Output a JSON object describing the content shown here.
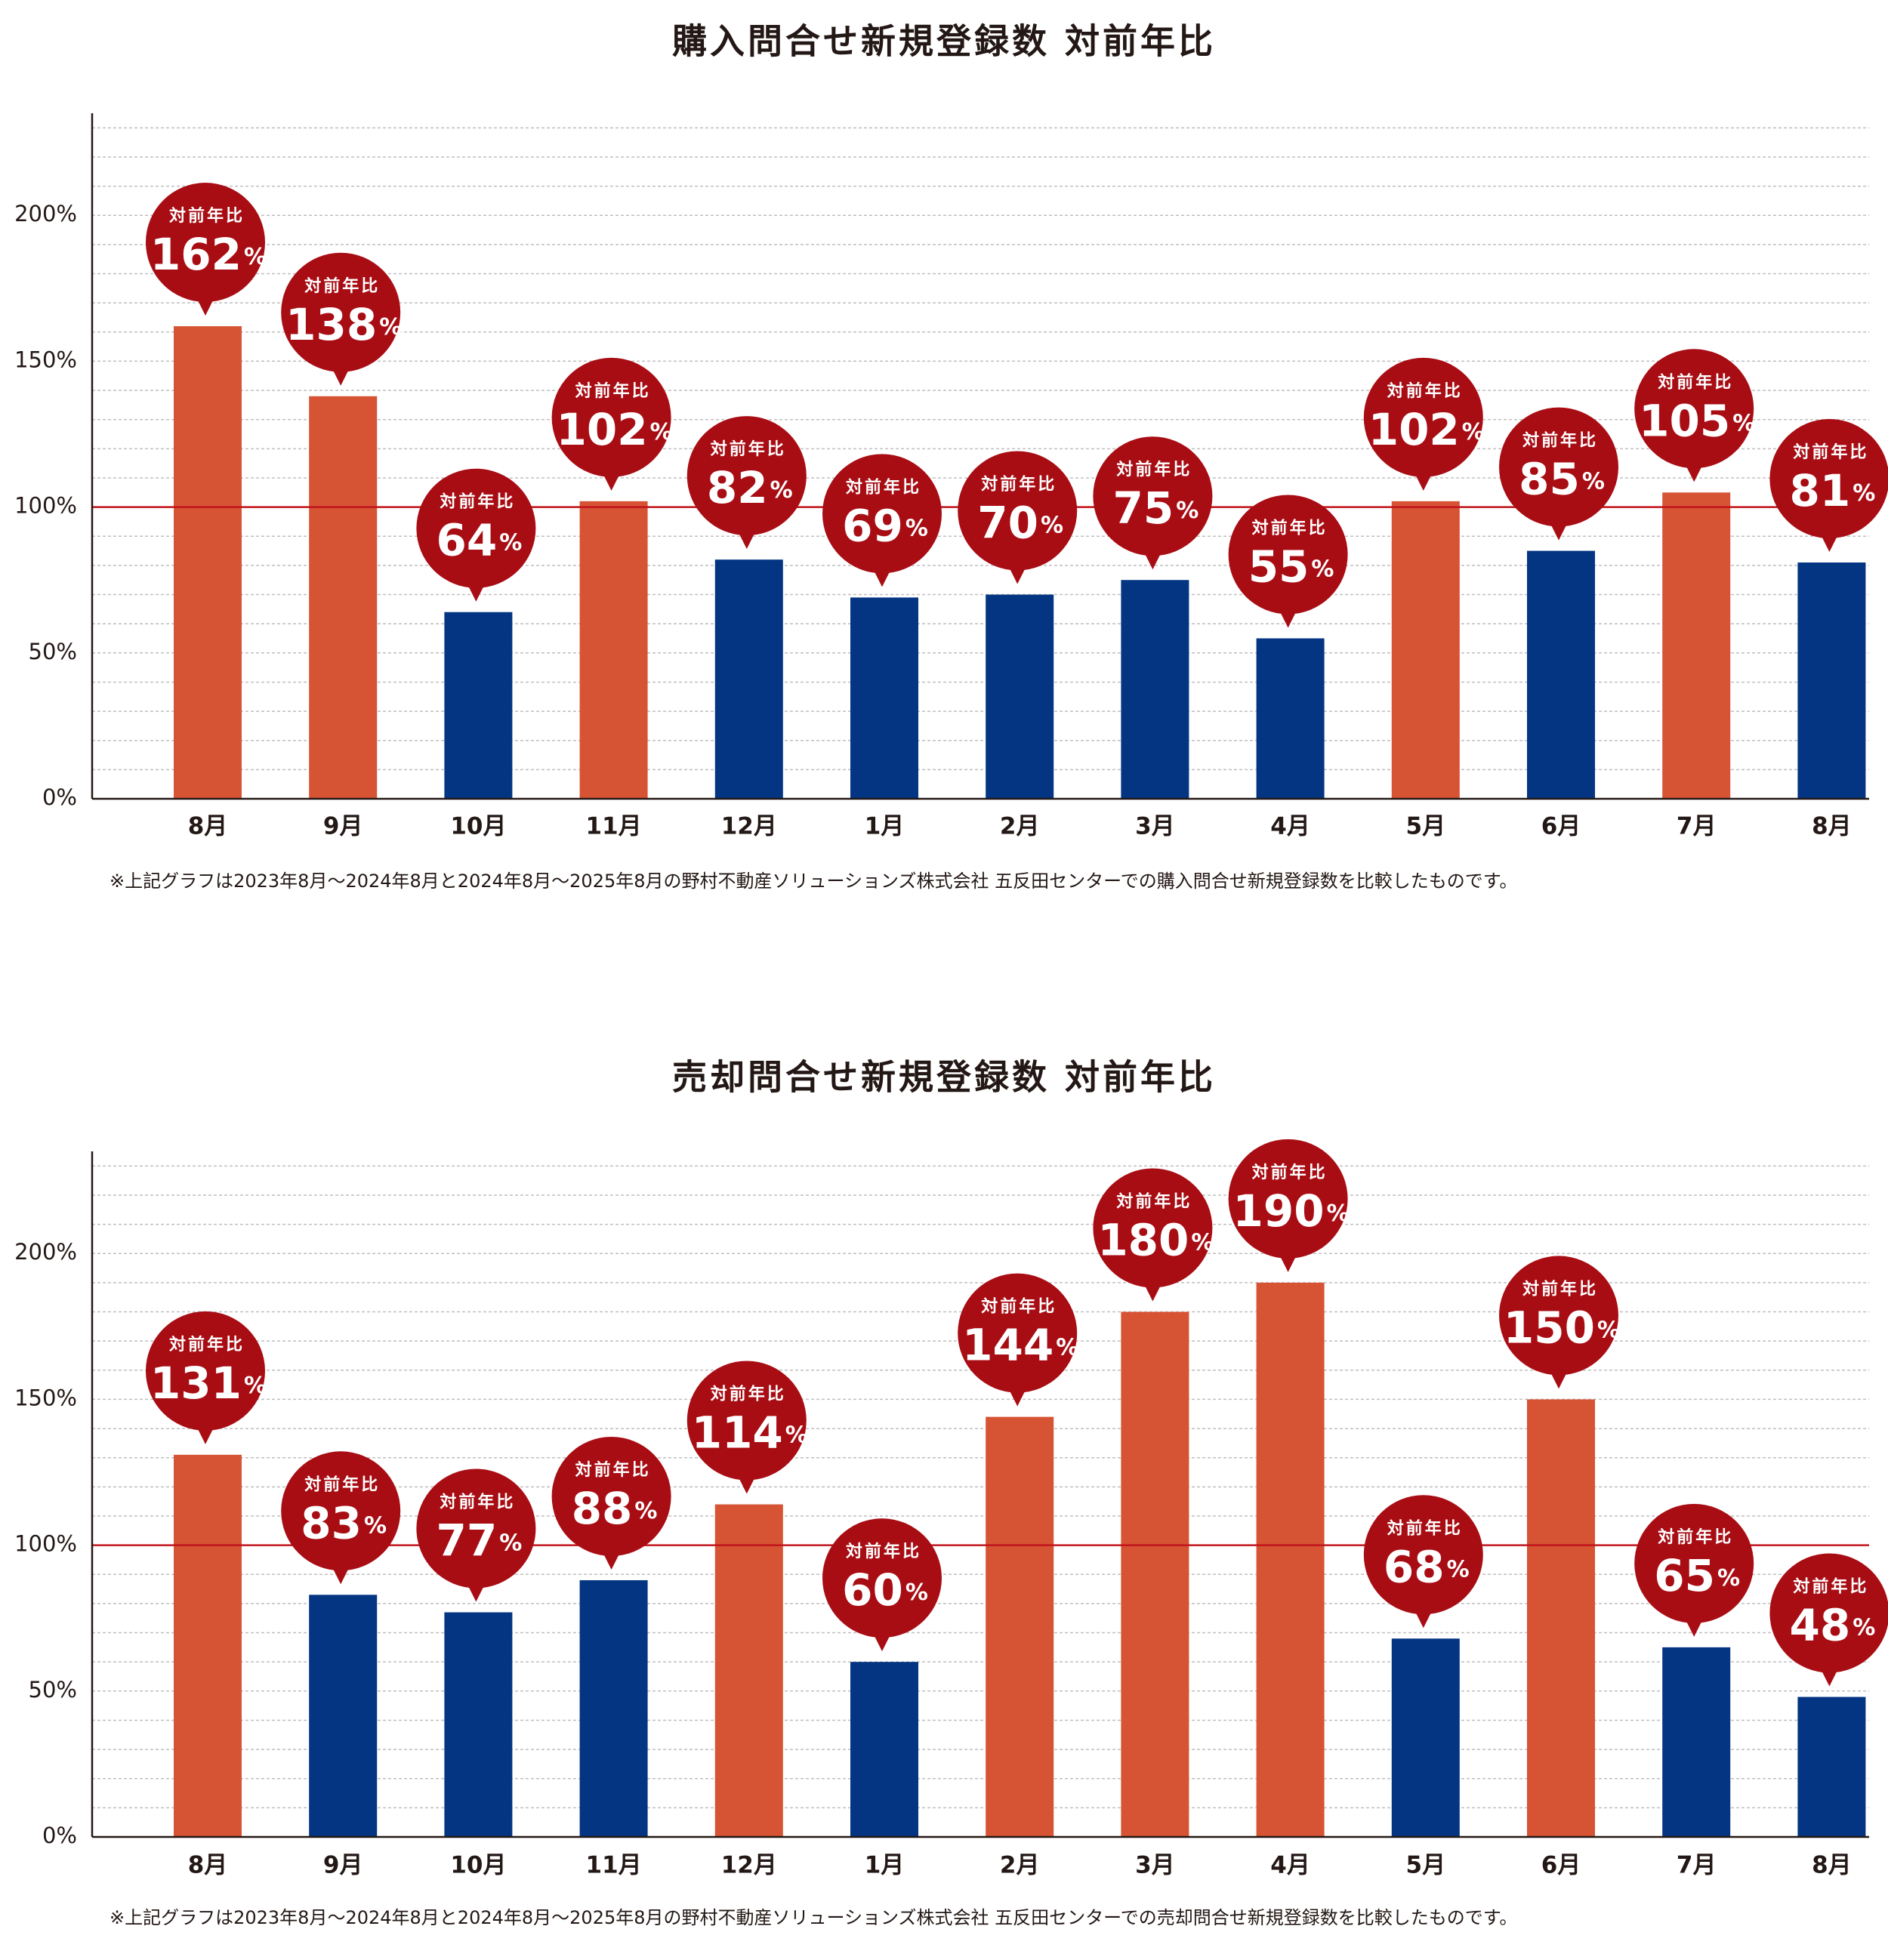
{
  "colors": {
    "above_100": "#D65334",
    "below_100": "#033583",
    "callout": "#A80D14",
    "reference_line": "#C1141C",
    "grid": "#BFBFBF",
    "axis": "#231815"
  },
  "chart_data": [
    {
      "type": "bar",
      "title": "購入問合せ新規登録数 対前年比",
      "categories": [
        "8月",
        "9月",
        "10月",
        "11月",
        "12月",
        "1月",
        "2月",
        "3月",
        "4月",
        "5月",
        "6月",
        "7月",
        "8月"
      ],
      "values": [
        162,
        138,
        64,
        102,
        82,
        69,
        70,
        75,
        55,
        102,
        85,
        105,
        81
      ],
      "ylim": [
        0,
        235
      ],
      "y_ticks": [
        "0%",
        "50%",
        "100%",
        "150%",
        "200%"
      ],
      "y_tick_values": [
        0,
        50,
        100,
        150,
        200
      ],
      "reference_line": 100,
      "grid": true,
      "callout_label": "対前年比",
      "callout_unit": "%",
      "note": "※上記グラフは2023年8月〜2024年8月と2024年8月〜2025年8月の野村不動産ソリューションズ株式会社 五反田センターでの購入問合せ新規登録数を比較したものです。"
    },
    {
      "type": "bar",
      "title": "売却問合せ新規登録数 対前年比",
      "categories": [
        "8月",
        "9月",
        "10月",
        "11月",
        "12月",
        "1月",
        "2月",
        "3月",
        "4月",
        "5月",
        "6月",
        "7月",
        "8月"
      ],
      "values": [
        131,
        83,
        77,
        88,
        114,
        60,
        144,
        180,
        190,
        68,
        150,
        65,
        48
      ],
      "ylim": [
        0,
        235
      ],
      "y_ticks": [
        "0%",
        "50%",
        "100%",
        "150%",
        "200%"
      ],
      "y_tick_values": [
        0,
        50,
        100,
        150,
        200
      ],
      "reference_line": 100,
      "grid": true,
      "callout_label": "対前年比",
      "callout_unit": "%",
      "note": "※上記グラフは2023年8月〜2024年8月と2024年8月〜2025年8月の野村不動産ソリューションズ株式会社 五反田センターでの売却問合せ新規登録数を比較したものです。"
    }
  ]
}
